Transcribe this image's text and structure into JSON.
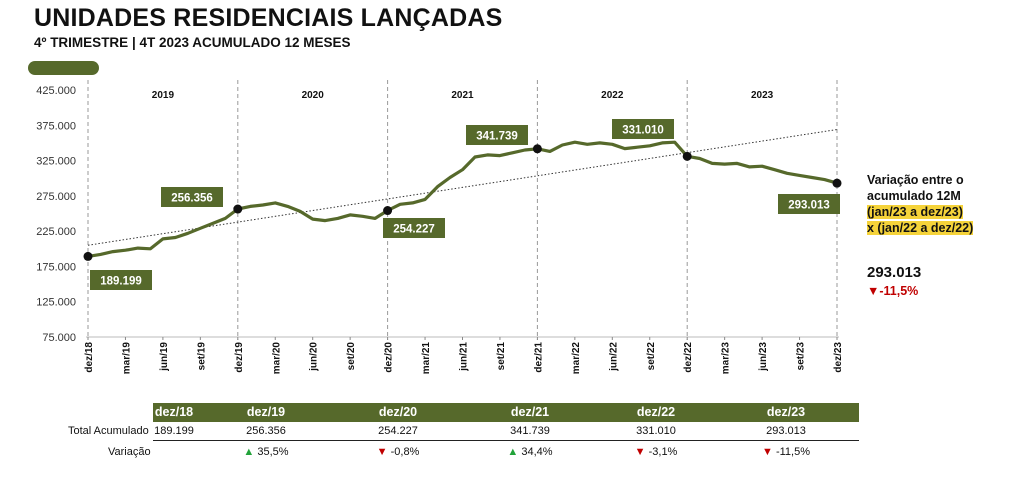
{
  "header": {
    "title": "UNIDADES RESIDENCIAIS LANÇADAS",
    "subtitle": "4º TRIMESTRE | 4T 2023 ACUMULADO 12 MESES"
  },
  "colors": {
    "accent": "#56692b",
    "line": "#56692b",
    "down": "#c00000",
    "up": "#22a33a",
    "highlight": "#f5d33a"
  },
  "chart_data": {
    "type": "line",
    "ylim": [
      75000,
      425000
    ],
    "yticks": [
      "75.000",
      "125.000",
      "175.000",
      "225.000",
      "275.000",
      "325.000",
      "375.000",
      "425.000"
    ],
    "ytick_values": [
      75000,
      125000,
      175000,
      225000,
      275000,
      325000,
      375000,
      425000
    ],
    "year_labels": [
      "2019",
      "2020",
      "2021",
      "2022",
      "2023"
    ],
    "xtick_labels": [
      "dez/18",
      "mar/19",
      "jun/19",
      "set/19",
      "dez/19",
      "mar/20",
      "jun/20",
      "set/20",
      "dez/20",
      "mar/21",
      "jun/21",
      "set/21",
      "dez/21",
      "mar/22",
      "jun/22",
      "set/22",
      "dez/22",
      "mar/23",
      "jun/23",
      "set/23",
      "dez/23"
    ],
    "series": [
      {
        "values": [
          189199,
          192000,
          196000,
          198000,
          201000,
          200000,
          214000,
          216000,
          222000,
          229000,
          236000,
          243000,
          256356,
          260000,
          262000,
          265000,
          260000,
          253000,
          242000,
          240000,
          243000,
          248000,
          246000,
          243000,
          254227,
          263000,
          265000,
          270000,
          288000,
          301000,
          312000,
          330000,
          333000,
          332000,
          336000,
          340000,
          341739,
          338000,
          347000,
          351000,
          348000,
          350000,
          348000,
          342000,
          344000,
          346000,
          350000,
          351000,
          331010,
          328000,
          321000,
          320000,
          321000,
          316000,
          317000,
          312000,
          307000,
          304000,
          301000,
          298000,
          293013
        ]
      }
    ],
    "trendline": {
      "start": 205000,
      "end": 369000
    },
    "annotations": [
      {
        "index": 0,
        "label": "189.199"
      },
      {
        "index": 12,
        "label": "256.356"
      },
      {
        "index": 24,
        "label": "254.227"
      },
      {
        "index": 36,
        "label": "341.739"
      },
      {
        "index": 48,
        "label": "331.010"
      },
      {
        "index": 60,
        "label": "293.013"
      }
    ]
  },
  "side": {
    "label_line1": "Variação entre o",
    "label_line2": "acumulado 12M",
    "label_line3": "(jan/23 a dez/23)",
    "label_line4": "x (jan/22 a dez/22)",
    "value": "293.013",
    "variation": "-11,5%",
    "variation_arrow": "▼"
  },
  "table": {
    "headers": [
      "dez/18",
      "dez/19",
      "dez/20",
      "dez/21",
      "dez/22",
      "dez/23"
    ],
    "row1_label": "Total Acumulado",
    "row1": [
      "189.199",
      "256.356",
      "254.227",
      "341.739",
      "331.010",
      "293.013"
    ],
    "row2_label": "Variação",
    "row2": [
      {
        "arrow": "▲",
        "value": "35,5%",
        "dir": "up"
      },
      {
        "arrow": "▼",
        "value": "-0,8%",
        "dir": "down"
      },
      {
        "arrow": "▲",
        "value": "34,4%",
        "dir": "up"
      },
      {
        "arrow": "▼",
        "value": "-3,1%",
        "dir": "down"
      },
      {
        "arrow": "▼",
        "value": "-11,5%",
        "dir": "down"
      }
    ]
  }
}
